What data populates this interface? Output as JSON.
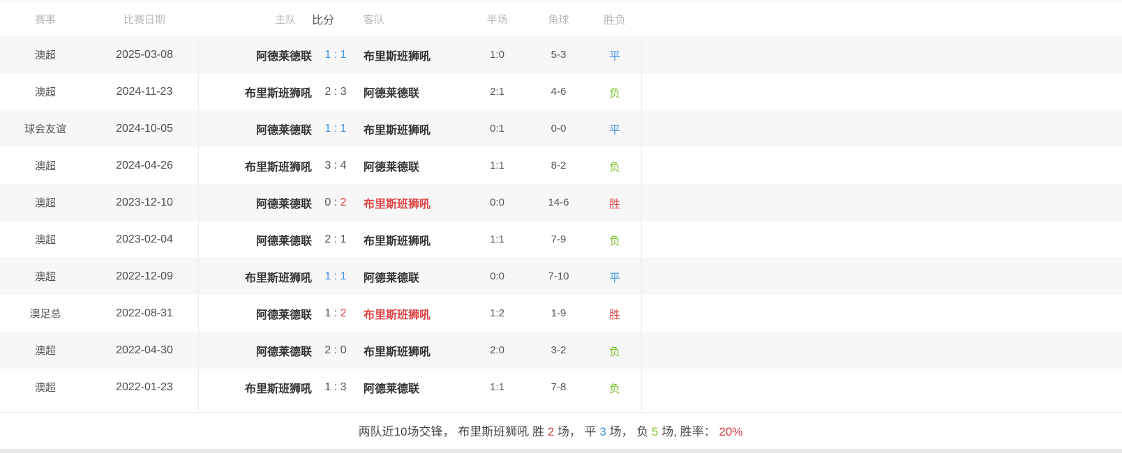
{
  "header": {
    "league": "赛事",
    "date": "比赛日期",
    "home": "主队",
    "score": "比分",
    "away": "客队",
    "half": "半场",
    "corners": "角球",
    "result": "胜负"
  },
  "colors": {
    "red": "#e04444",
    "blue": "#4393e4",
    "green": "#7fc32d",
    "row_stripe": "#f7f7f7",
    "header_text": "#b9b9b9"
  },
  "rows": [
    {
      "league": "澳超",
      "date": "2025-03-08",
      "home": "阿德莱德联",
      "home_red": false,
      "score_home": "1",
      "score_away": "1",
      "score_class": "draw",
      "score_red_side": "",
      "away": "布里斯班狮吼",
      "away_red": false,
      "half": "1:0",
      "corners": "5-3",
      "result": "平",
      "result_class": "draw"
    },
    {
      "league": "澳超",
      "date": "2024-11-23",
      "home": "布里斯班狮吼",
      "home_red": false,
      "score_home": "2",
      "score_away": "3",
      "score_class": "plain",
      "score_red_side": "",
      "away": "阿德莱德联",
      "away_red": false,
      "half": "2:1",
      "corners": "4-6",
      "result": "负",
      "result_class": "loss"
    },
    {
      "league": "球会友谊",
      "date": "2024-10-05",
      "home": "阿德莱德联",
      "home_red": false,
      "score_home": "1",
      "score_away": "1",
      "score_class": "draw",
      "score_red_side": "",
      "away": "布里斯班狮吼",
      "away_red": false,
      "half": "0:1",
      "corners": "0-0",
      "result": "平",
      "result_class": "draw"
    },
    {
      "league": "澳超",
      "date": "2024-04-26",
      "home": "布里斯班狮吼",
      "home_red": false,
      "score_home": "3",
      "score_away": "4",
      "score_class": "plain",
      "score_red_side": "",
      "away": "阿德莱德联",
      "away_red": false,
      "half": "1:1",
      "corners": "8-2",
      "result": "负",
      "result_class": "loss"
    },
    {
      "league": "澳超",
      "date": "2023-12-10",
      "home": "阿德莱德联",
      "home_red": false,
      "score_home": "0",
      "score_away": "2",
      "score_class": "plain",
      "score_red_side": "away",
      "away": "布里斯班狮吼",
      "away_red": true,
      "half": "0:0",
      "corners": "14-6",
      "result": "胜",
      "result_class": "win"
    },
    {
      "league": "澳超",
      "date": "2023-02-04",
      "home": "阿德莱德联",
      "home_red": false,
      "score_home": "2",
      "score_away": "1",
      "score_class": "plain",
      "score_red_side": "",
      "away": "布里斯班狮吼",
      "away_red": false,
      "half": "1:1",
      "corners": "7-9",
      "result": "负",
      "result_class": "loss"
    },
    {
      "league": "澳超",
      "date": "2022-12-09",
      "home": "布里斯班狮吼",
      "home_red": false,
      "score_home": "1",
      "score_away": "1",
      "score_class": "draw",
      "score_red_side": "",
      "away": "阿德莱德联",
      "away_red": false,
      "half": "0:0",
      "corners": "7-10",
      "result": "平",
      "result_class": "draw"
    },
    {
      "league": "澳足总",
      "date": "2022-08-31",
      "home": "阿德莱德联",
      "home_red": false,
      "score_home": "1",
      "score_away": "2",
      "score_class": "plain",
      "score_red_side": "away",
      "away": "布里斯班狮吼",
      "away_red": true,
      "half": "1:2",
      "corners": "1-9",
      "result": "胜",
      "result_class": "win"
    },
    {
      "league": "澳超",
      "date": "2022-04-30",
      "home": "阿德莱德联",
      "home_red": false,
      "score_home": "2",
      "score_away": "0",
      "score_class": "plain",
      "score_red_side": "",
      "away": "布里斯班狮吼",
      "away_red": false,
      "half": "2:0",
      "corners": "3-2",
      "result": "负",
      "result_class": "loss"
    },
    {
      "league": "澳超",
      "date": "2022-01-23",
      "home": "布里斯班狮吼",
      "home_red": false,
      "score_home": "1",
      "score_away": "3",
      "score_class": "plain",
      "score_red_side": "",
      "away": "阿德莱德联",
      "away_red": false,
      "half": "1:1",
      "corners": "7-8",
      "result": "负",
      "result_class": "loss"
    }
  ],
  "summary": {
    "segments": [
      {
        "text": "两队近10场交锋，  ",
        "color": "default"
      },
      {
        "text": "布里斯班狮吼 胜 ",
        "color": "default"
      },
      {
        "text": "2",
        "color": "red"
      },
      {
        "text": " 场，  ",
        "color": "default"
      },
      {
        "text": "平 ",
        "color": "default"
      },
      {
        "text": "3",
        "color": "blue"
      },
      {
        "text": " 场，  ",
        "color": "default"
      },
      {
        "text": "负 ",
        "color": "default"
      },
      {
        "text": "5",
        "color": "green"
      },
      {
        "text": " 场, 胜率：  ",
        "color": "default"
      },
      {
        "text": "20%",
        "color": "red"
      }
    ]
  }
}
